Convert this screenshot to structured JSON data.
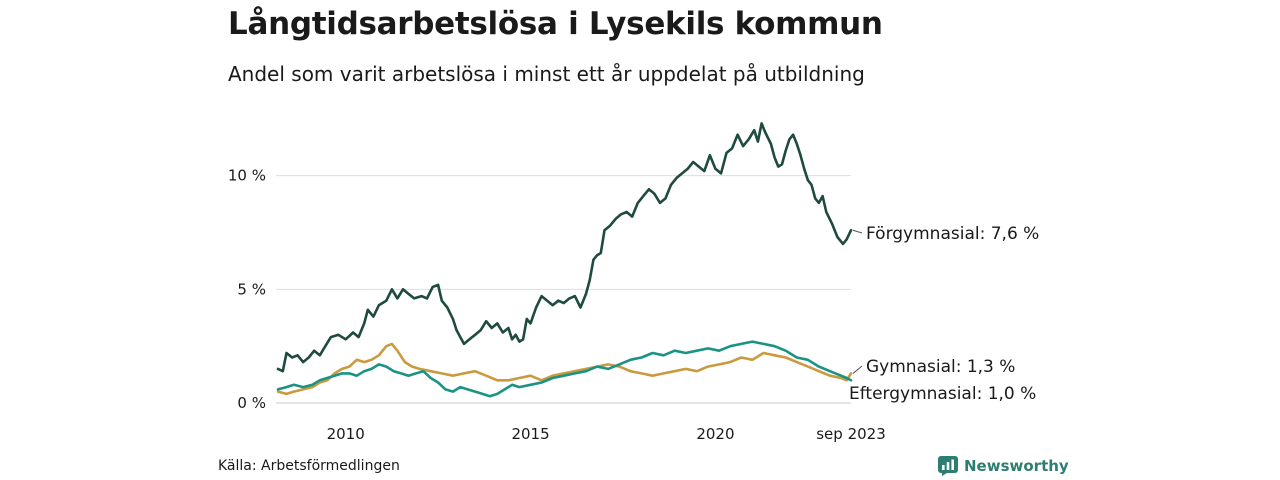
{
  "header": {
    "title": "Långtidsarbetslösa i Lysekils kommun",
    "subtitle": "Andel som varit arbetslösa i minst ett år uppdelat på utbildning"
  },
  "footer": {
    "source": "Källa: Arbetsförmedlingen",
    "brand": "Newsworthy",
    "brand_icon": "bar-chart-icon"
  },
  "chart_data": {
    "type": "line",
    "title": "Långtidsarbetslösa i Lysekils kommun",
    "subtitle": "Andel som varit arbetslösa i minst ett år uppdelat på utbildning",
    "xlabel": "",
    "ylabel": "",
    "x_start": "2008-03",
    "x_end": "2023-09",
    "ylim": [
      0,
      12.8
    ],
    "y_ticks": [
      {
        "value": 0,
        "label": "0 %"
      },
      {
        "value": 5,
        "label": "5 %"
      },
      {
        "value": 10,
        "label": "10 %"
      }
    ],
    "x_ticks": [
      {
        "value": 2010,
        "label": "2010"
      },
      {
        "value": 2015,
        "label": "2015"
      },
      {
        "value": 2020,
        "label": "2020"
      },
      {
        "value": 2023.667,
        "label": "sep 2023"
      }
    ],
    "grid": "horizontal",
    "series": [
      {
        "name": "Förgymnasial",
        "end_label": "Förgymnasial: 7,6 %",
        "color": "#1f4a40",
        "points": [
          [
            2008.17,
            1.5
          ],
          [
            2008.3,
            1.4
          ],
          [
            2008.4,
            2.2
          ],
          [
            2008.55,
            2.0
          ],
          [
            2008.7,
            2.1
          ],
          [
            2008.85,
            1.8
          ],
          [
            2009.0,
            2.0
          ],
          [
            2009.15,
            2.3
          ],
          [
            2009.3,
            2.1
          ],
          [
            2009.45,
            2.5
          ],
          [
            2009.6,
            2.9
          ],
          [
            2009.8,
            3.0
          ],
          [
            2010.0,
            2.8
          ],
          [
            2010.2,
            3.1
          ],
          [
            2010.35,
            2.9
          ],
          [
            2010.5,
            3.5
          ],
          [
            2010.6,
            4.1
          ],
          [
            2010.75,
            3.8
          ],
          [
            2010.9,
            4.3
          ],
          [
            2011.1,
            4.5
          ],
          [
            2011.25,
            5.0
          ],
          [
            2011.4,
            4.6
          ],
          [
            2011.55,
            5.0
          ],
          [
            2011.7,
            4.8
          ],
          [
            2011.85,
            4.6
          ],
          [
            2012.05,
            4.7
          ],
          [
            2012.2,
            4.6
          ],
          [
            2012.35,
            5.1
          ],
          [
            2012.5,
            5.2
          ],
          [
            2012.6,
            4.5
          ],
          [
            2012.75,
            4.2
          ],
          [
            2012.9,
            3.7
          ],
          [
            2013.0,
            3.2
          ],
          [
            2013.1,
            2.9
          ],
          [
            2013.2,
            2.6
          ],
          [
            2013.35,
            2.8
          ],
          [
            2013.5,
            3.0
          ],
          [
            2013.65,
            3.2
          ],
          [
            2013.8,
            3.6
          ],
          [
            2013.95,
            3.3
          ],
          [
            2014.1,
            3.5
          ],
          [
            2014.25,
            3.1
          ],
          [
            2014.4,
            3.3
          ],
          [
            2014.5,
            2.8
          ],
          [
            2014.6,
            3.0
          ],
          [
            2014.7,
            2.7
          ],
          [
            2014.8,
            2.8
          ],
          [
            2014.9,
            3.7
          ],
          [
            2015.0,
            3.5
          ],
          [
            2015.15,
            4.2
          ],
          [
            2015.3,
            4.7
          ],
          [
            2015.45,
            4.5
          ],
          [
            2015.6,
            4.3
          ],
          [
            2015.75,
            4.5
          ],
          [
            2015.9,
            4.4
          ],
          [
            2016.05,
            4.6
          ],
          [
            2016.2,
            4.7
          ],
          [
            2016.35,
            4.2
          ],
          [
            2016.5,
            4.8
          ],
          [
            2016.6,
            5.4
          ],
          [
            2016.7,
            6.3
          ],
          [
            2016.8,
            6.5
          ],
          [
            2016.9,
            6.6
          ],
          [
            2017.0,
            7.6
          ],
          [
            2017.15,
            7.8
          ],
          [
            2017.3,
            8.1
          ],
          [
            2017.45,
            8.3
          ],
          [
            2017.6,
            8.4
          ],
          [
            2017.75,
            8.2
          ],
          [
            2017.9,
            8.8
          ],
          [
            2018.05,
            9.1
          ],
          [
            2018.2,
            9.4
          ],
          [
            2018.35,
            9.2
          ],
          [
            2018.5,
            8.8
          ],
          [
            2018.65,
            9.0
          ],
          [
            2018.8,
            9.6
          ],
          [
            2018.95,
            9.9
          ],
          [
            2019.1,
            10.1
          ],
          [
            2019.25,
            10.3
          ],
          [
            2019.4,
            10.6
          ],
          [
            2019.55,
            10.4
          ],
          [
            2019.7,
            10.2
          ],
          [
            2019.85,
            10.9
          ],
          [
            2020.0,
            10.3
          ],
          [
            2020.15,
            10.1
          ],
          [
            2020.3,
            11.0
          ],
          [
            2020.45,
            11.2
          ],
          [
            2020.6,
            11.8
          ],
          [
            2020.75,
            11.3
          ],
          [
            2020.9,
            11.6
          ],
          [
            2021.05,
            12.0
          ],
          [
            2021.15,
            11.5
          ],
          [
            2021.25,
            12.3
          ],
          [
            2021.35,
            11.9
          ],
          [
            2021.5,
            11.4
          ],
          [
            2021.6,
            10.8
          ],
          [
            2021.7,
            10.4
          ],
          [
            2021.8,
            10.5
          ],
          [
            2021.9,
            11.1
          ],
          [
            2022.0,
            11.6
          ],
          [
            2022.1,
            11.8
          ],
          [
            2022.2,
            11.4
          ],
          [
            2022.3,
            10.9
          ],
          [
            2022.4,
            10.3
          ],
          [
            2022.5,
            9.8
          ],
          [
            2022.6,
            9.6
          ],
          [
            2022.7,
            9.0
          ],
          [
            2022.8,
            8.8
          ],
          [
            2022.9,
            9.1
          ],
          [
            2023.0,
            8.4
          ],
          [
            2023.15,
            7.9
          ],
          [
            2023.3,
            7.3
          ],
          [
            2023.45,
            7.0
          ],
          [
            2023.55,
            7.2
          ],
          [
            2023.667,
            7.6
          ]
        ]
      },
      {
        "name": "Gymnasial",
        "end_label": "Gymnasial: 1,3 %",
        "color": "#c99a3e",
        "points": [
          [
            2008.17,
            0.5
          ],
          [
            2008.4,
            0.4
          ],
          [
            2008.6,
            0.5
          ],
          [
            2008.85,
            0.6
          ],
          [
            2009.1,
            0.7
          ],
          [
            2009.3,
            0.9
          ],
          [
            2009.5,
            1.0
          ],
          [
            2009.7,
            1.3
          ],
          [
            2009.9,
            1.5
          ],
          [
            2010.1,
            1.6
          ],
          [
            2010.3,
            1.9
          ],
          [
            2010.5,
            1.8
          ],
          [
            2010.7,
            1.9
          ],
          [
            2010.9,
            2.1
          ],
          [
            2011.1,
            2.5
          ],
          [
            2011.25,
            2.6
          ],
          [
            2011.4,
            2.3
          ],
          [
            2011.6,
            1.8
          ],
          [
            2011.8,
            1.6
          ],
          [
            2012.0,
            1.5
          ],
          [
            2012.3,
            1.4
          ],
          [
            2012.6,
            1.3
          ],
          [
            2012.9,
            1.2
          ],
          [
            2013.2,
            1.3
          ],
          [
            2013.5,
            1.4
          ],
          [
            2013.8,
            1.2
          ],
          [
            2014.1,
            1.0
          ],
          [
            2014.4,
            1.0
          ],
          [
            2014.7,
            1.1
          ],
          [
            2015.0,
            1.2
          ],
          [
            2015.3,
            1.0
          ],
          [
            2015.6,
            1.2
          ],
          [
            2015.9,
            1.3
          ],
          [
            2016.2,
            1.4
          ],
          [
            2016.5,
            1.5
          ],
          [
            2016.8,
            1.6
          ],
          [
            2017.1,
            1.7
          ],
          [
            2017.4,
            1.6
          ],
          [
            2017.7,
            1.4
          ],
          [
            2018.0,
            1.3
          ],
          [
            2018.3,
            1.2
          ],
          [
            2018.6,
            1.3
          ],
          [
            2018.9,
            1.4
          ],
          [
            2019.2,
            1.5
          ],
          [
            2019.5,
            1.4
          ],
          [
            2019.8,
            1.6
          ],
          [
            2020.1,
            1.7
          ],
          [
            2020.4,
            1.8
          ],
          [
            2020.7,
            2.0
          ],
          [
            2021.0,
            1.9
          ],
          [
            2021.3,
            2.2
          ],
          [
            2021.6,
            2.1
          ],
          [
            2021.9,
            2.0
          ],
          [
            2022.2,
            1.8
          ],
          [
            2022.5,
            1.6
          ],
          [
            2022.8,
            1.4
          ],
          [
            2023.1,
            1.2
          ],
          [
            2023.4,
            1.1
          ],
          [
            2023.55,
            1.0
          ],
          [
            2023.667,
            1.3
          ]
        ]
      },
      {
        "name": "Eftergymnasial",
        "end_label": "Eftergymnasial: 1,0 %",
        "color": "#1a9385",
        "points": [
          [
            2008.17,
            0.6
          ],
          [
            2008.4,
            0.7
          ],
          [
            2008.6,
            0.8
          ],
          [
            2008.85,
            0.7
          ],
          [
            2009.1,
            0.8
          ],
          [
            2009.3,
            1.0
          ],
          [
            2009.5,
            1.1
          ],
          [
            2009.7,
            1.2
          ],
          [
            2009.9,
            1.3
          ],
          [
            2010.1,
            1.3
          ],
          [
            2010.3,
            1.2
          ],
          [
            2010.5,
            1.4
          ],
          [
            2010.7,
            1.5
          ],
          [
            2010.9,
            1.7
          ],
          [
            2011.1,
            1.6
          ],
          [
            2011.3,
            1.4
          ],
          [
            2011.5,
            1.3
          ],
          [
            2011.7,
            1.2
          ],
          [
            2011.9,
            1.3
          ],
          [
            2012.1,
            1.4
          ],
          [
            2012.3,
            1.1
          ],
          [
            2012.5,
            0.9
          ],
          [
            2012.7,
            0.6
          ],
          [
            2012.9,
            0.5
          ],
          [
            2013.1,
            0.7
          ],
          [
            2013.3,
            0.6
          ],
          [
            2013.5,
            0.5
          ],
          [
            2013.7,
            0.4
          ],
          [
            2013.9,
            0.3
          ],
          [
            2014.1,
            0.4
          ],
          [
            2014.3,
            0.6
          ],
          [
            2014.5,
            0.8
          ],
          [
            2014.7,
            0.7
          ],
          [
            2015.0,
            0.8
          ],
          [
            2015.3,
            0.9
          ],
          [
            2015.6,
            1.1
          ],
          [
            2015.9,
            1.2
          ],
          [
            2016.2,
            1.3
          ],
          [
            2016.5,
            1.4
          ],
          [
            2016.8,
            1.6
          ],
          [
            2017.1,
            1.5
          ],
          [
            2017.4,
            1.7
          ],
          [
            2017.7,
            1.9
          ],
          [
            2018.0,
            2.0
          ],
          [
            2018.3,
            2.2
          ],
          [
            2018.6,
            2.1
          ],
          [
            2018.9,
            2.3
          ],
          [
            2019.2,
            2.2
          ],
          [
            2019.5,
            2.3
          ],
          [
            2019.8,
            2.4
          ],
          [
            2020.1,
            2.3
          ],
          [
            2020.4,
            2.5
          ],
          [
            2020.7,
            2.6
          ],
          [
            2021.0,
            2.7
          ],
          [
            2021.3,
            2.6
          ],
          [
            2021.6,
            2.5
          ],
          [
            2021.9,
            2.3
          ],
          [
            2022.2,
            2.0
          ],
          [
            2022.5,
            1.9
          ],
          [
            2022.8,
            1.6
          ],
          [
            2023.1,
            1.4
          ],
          [
            2023.4,
            1.2
          ],
          [
            2023.55,
            1.1
          ],
          [
            2023.667,
            1.0
          ]
        ]
      }
    ]
  }
}
